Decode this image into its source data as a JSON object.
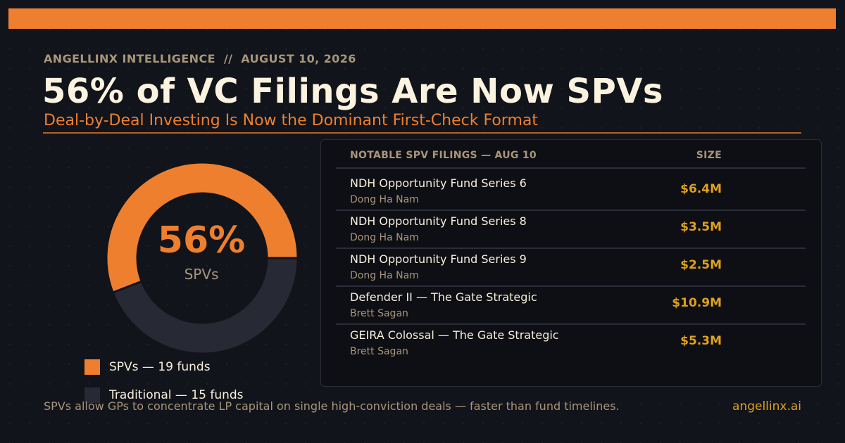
{
  "header": {
    "kicker": "ANGELLINX INTELLIGENCE  //  AUGUST 10, 2026",
    "title": "56% of VC Filings Are Now SPVs",
    "subtitle": "Deal-by-Deal Investing Is Now the Dominant First-Check Format"
  },
  "colors": {
    "accent": "#ee7f2e",
    "gold": "#dea11f",
    "traditional": "#272a35",
    "background": "#12141b"
  },
  "chart_data": {
    "type": "pie",
    "title": "",
    "center_value": "56%",
    "center_label": "SPVs",
    "slices": [
      {
        "label": "SPVs — 19 funds",
        "count": 19,
        "percent": 56,
        "color": "#ee7f2e"
      },
      {
        "label": "Traditional — 15 funds",
        "count": 15,
        "percent": 44,
        "color": "#272a35"
      }
    ],
    "legend_position": "bottom"
  },
  "table": {
    "header": "NOTABLE SPV FILINGS — AUG 10",
    "size_header": "SIZE",
    "rows": [
      {
        "name": "NDH Opportunity Fund Series 6",
        "sponsor": "Dong Ha Nam",
        "size": "$6.4M"
      },
      {
        "name": "NDH Opportunity Fund Series 8",
        "sponsor": "Dong Ha Nam",
        "size": "$3.5M"
      },
      {
        "name": "NDH Opportunity Fund Series 9",
        "sponsor": "Dong Ha Nam",
        "size": "$2.5M"
      },
      {
        "name": "Defender II — The Gate Strategic",
        "sponsor": "Brett Sagan",
        "size": "$10.9M"
      },
      {
        "name": "GEIRA Colossal — The Gate Strategic",
        "sponsor": "Brett Sagan",
        "size": "$5.3M"
      }
    ]
  },
  "footer": {
    "note": "SPVs allow GPs to concentrate LP capital on single high-conviction deals — faster than fund timelines.",
    "link": "angellinx.ai"
  }
}
